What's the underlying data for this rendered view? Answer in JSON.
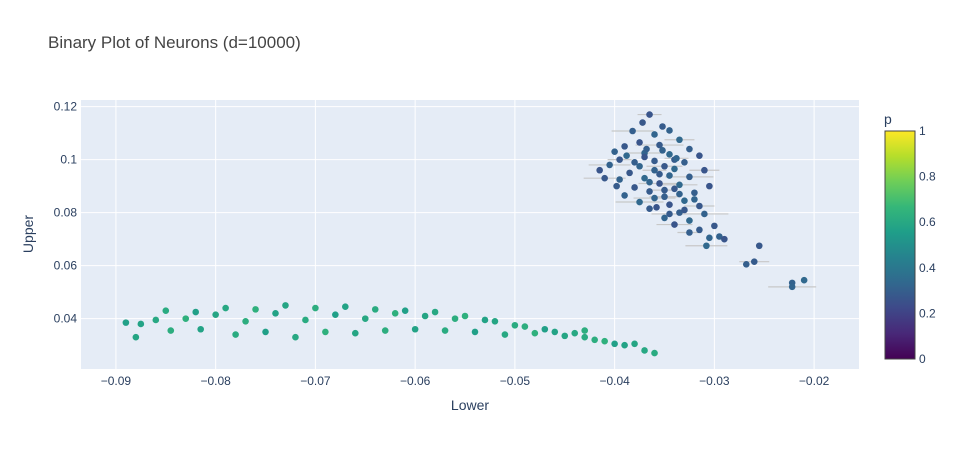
{
  "chart_data": {
    "type": "scatter",
    "title": "Binary Plot of Neurons (d=10000)",
    "xlabel": "Lower",
    "ylabel": "Upper",
    "xlim": [
      -0.0935,
      -0.0155
    ],
    "ylim": [
      0.021,
      0.1225
    ],
    "x_ticks": [
      -0.09,
      -0.08,
      -0.07,
      -0.06,
      -0.05,
      -0.04,
      -0.03,
      -0.02
    ],
    "x_tick_labels": [
      "−0.09",
      "−0.08",
      "−0.07",
      "−0.06",
      "−0.05",
      "−0.04",
      "−0.03",
      "−0.02"
    ],
    "y_ticks": [
      0.04,
      0.06,
      0.08,
      0.1,
      0.12
    ],
    "y_tick_labels": [
      "0.04",
      "0.06",
      "0.08",
      "0.1",
      "0.12"
    ],
    "grid": true,
    "colorbar": {
      "title": "p",
      "range": [
        0,
        1
      ],
      "ticks": [
        0,
        0.2,
        0.4,
        0.6,
        0.8,
        1
      ],
      "tick_labels": [
        "0",
        "0.2",
        "0.4",
        "0.6",
        "0.8",
        "1"
      ],
      "colorscale": [
        "#440154",
        "#482878",
        "#3e4989",
        "#31688e",
        "#26828e",
        "#1f9e89",
        "#35b779",
        "#6ece58",
        "#b5de2b",
        "#fde725"
      ]
    },
    "series": [
      {
        "cluster": "upper-right",
        "color_value": 0.3,
        "has_error_bars": true,
        "points": [
          [
            -0.0365,
            0.117
          ],
          [
            -0.0372,
            0.114
          ],
          [
            -0.0352,
            0.1125
          ],
          [
            -0.0382,
            0.1108
          ],
          [
            -0.0345,
            0.111
          ],
          [
            -0.036,
            0.1095
          ],
          [
            -0.0335,
            0.1075
          ],
          [
            -0.0375,
            0.1065
          ],
          [
            -0.039,
            0.105
          ],
          [
            -0.0355,
            0.1055
          ],
          [
            -0.0325,
            0.104
          ],
          [
            -0.04,
            0.103
          ],
          [
            -0.037,
            0.1025
          ],
          [
            -0.0345,
            0.102
          ],
          [
            -0.0315,
            0.1015
          ],
          [
            -0.0395,
            0.1
          ],
          [
            -0.036,
            0.0995
          ],
          [
            -0.033,
            0.099
          ],
          [
            -0.0405,
            0.098
          ],
          [
            -0.0375,
            0.0975
          ],
          [
            -0.034,
            0.0965
          ],
          [
            -0.031,
            0.096
          ],
          [
            -0.0385,
            0.095
          ],
          [
            -0.0355,
            0.0945
          ],
          [
            -0.0325,
            0.0935
          ],
          [
            -0.0395,
            0.0925
          ],
          [
            -0.0365,
            0.0915
          ],
          [
            -0.0335,
            0.0905
          ],
          [
            -0.0305,
            0.09
          ],
          [
            -0.038,
            0.0895
          ],
          [
            -0.035,
            0.0885
          ],
          [
            -0.032,
            0.0875
          ],
          [
            -0.039,
            0.0865
          ],
          [
            -0.036,
            0.0855
          ],
          [
            -0.033,
            0.0845
          ],
          [
            -0.0345,
            0.083
          ],
          [
            -0.0315,
            0.0825
          ],
          [
            -0.0365,
            0.0815
          ],
          [
            -0.0335,
            0.08
          ],
          [
            -0.031,
            0.0795
          ],
          [
            -0.035,
            0.078
          ],
          [
            -0.0325,
            0.077
          ],
          [
            -0.034,
            0.0755
          ],
          [
            -0.03,
            0.075
          ],
          [
            -0.0315,
            0.0735
          ],
          [
            -0.0325,
            0.0725
          ],
          [
            -0.0295,
            0.071
          ],
          [
            -0.0305,
            0.0705
          ],
          [
            -0.0308,
            0.0675
          ],
          [
            -0.029,
            0.07
          ],
          [
            -0.0255,
            0.0675
          ],
          [
            -0.026,
            0.0615
          ],
          [
            -0.0268,
            0.0605
          ],
          [
            -0.0222,
            0.0535
          ],
          [
            -0.0222,
            0.052
          ],
          [
            -0.021,
            0.0545
          ],
          [
            -0.037,
            0.101
          ],
          [
            -0.035,
            0.0975
          ],
          [
            -0.034,
            0.1
          ],
          [
            -0.038,
            0.099
          ],
          [
            -0.036,
            0.096
          ],
          [
            -0.0345,
            0.094
          ],
          [
            -0.037,
            0.093
          ],
          [
            -0.0355,
            0.091
          ],
          [
            -0.034,
            0.089
          ],
          [
            -0.0365,
            0.088
          ],
          [
            -0.035,
            0.086
          ],
          [
            -0.0335,
            0.087
          ],
          [
            -0.032,
            0.085
          ],
          [
            -0.0375,
            0.084
          ],
          [
            -0.0358,
            0.082
          ],
          [
            -0.033,
            0.081
          ],
          [
            -0.0345,
            0.0795
          ],
          [
            -0.0368,
            0.104
          ],
          [
            -0.0352,
            0.1035
          ],
          [
            -0.0338,
            0.1005
          ],
          [
            -0.0388,
            0.1015
          ],
          [
            -0.0415,
            0.096
          ],
          [
            -0.041,
            0.093
          ],
          [
            -0.0398,
            0.09
          ]
        ]
      },
      {
        "cluster": "lower-band",
        "color_value": 0.6,
        "has_error_bars": false,
        "points": [
          [
            -0.089,
            0.0385
          ],
          [
            -0.0875,
            0.038
          ],
          [
            -0.088,
            0.033
          ],
          [
            -0.086,
            0.0395
          ],
          [
            -0.085,
            0.043
          ],
          [
            -0.0845,
            0.0355
          ],
          [
            -0.083,
            0.04
          ],
          [
            -0.082,
            0.0425
          ],
          [
            -0.0815,
            0.036
          ],
          [
            -0.08,
            0.0415
          ],
          [
            -0.079,
            0.044
          ],
          [
            -0.078,
            0.034
          ],
          [
            -0.077,
            0.039
          ],
          [
            -0.076,
            0.0435
          ],
          [
            -0.075,
            0.035
          ],
          [
            -0.074,
            0.042
          ],
          [
            -0.073,
            0.045
          ],
          [
            -0.072,
            0.033
          ],
          [
            -0.071,
            0.0395
          ],
          [
            -0.07,
            0.044
          ],
          [
            -0.069,
            0.035
          ],
          [
            -0.068,
            0.0415
          ],
          [
            -0.067,
            0.0445
          ],
          [
            -0.066,
            0.0345
          ],
          [
            -0.065,
            0.04
          ],
          [
            -0.064,
            0.0435
          ],
          [
            -0.063,
            0.0355
          ],
          [
            -0.062,
            0.042
          ],
          [
            -0.061,
            0.043
          ],
          [
            -0.06,
            0.036
          ],
          [
            -0.059,
            0.041
          ],
          [
            -0.058,
            0.0425
          ],
          [
            -0.057,
            0.0355
          ],
          [
            -0.056,
            0.04
          ],
          [
            -0.055,
            0.041
          ],
          [
            -0.054,
            0.035
          ],
          [
            -0.053,
            0.0395
          ],
          [
            -0.052,
            0.039
          ],
          [
            -0.051,
            0.034
          ],
          [
            -0.05,
            0.0375
          ],
          [
            -0.049,
            0.037
          ],
          [
            -0.048,
            0.0345
          ],
          [
            -0.047,
            0.036
          ],
          [
            -0.046,
            0.035
          ],
          [
            -0.045,
            0.0335
          ],
          [
            -0.044,
            0.0345
          ],
          [
            -0.043,
            0.033
          ],
          [
            -0.042,
            0.032
          ],
          [
            -0.041,
            0.0315
          ],
          [
            -0.04,
            0.0305
          ],
          [
            -0.039,
            0.03
          ],
          [
            -0.038,
            0.0305
          ],
          [
            -0.037,
            0.028
          ],
          [
            -0.036,
            0.027
          ],
          [
            -0.043,
            0.0355
          ]
        ]
      }
    ]
  }
}
